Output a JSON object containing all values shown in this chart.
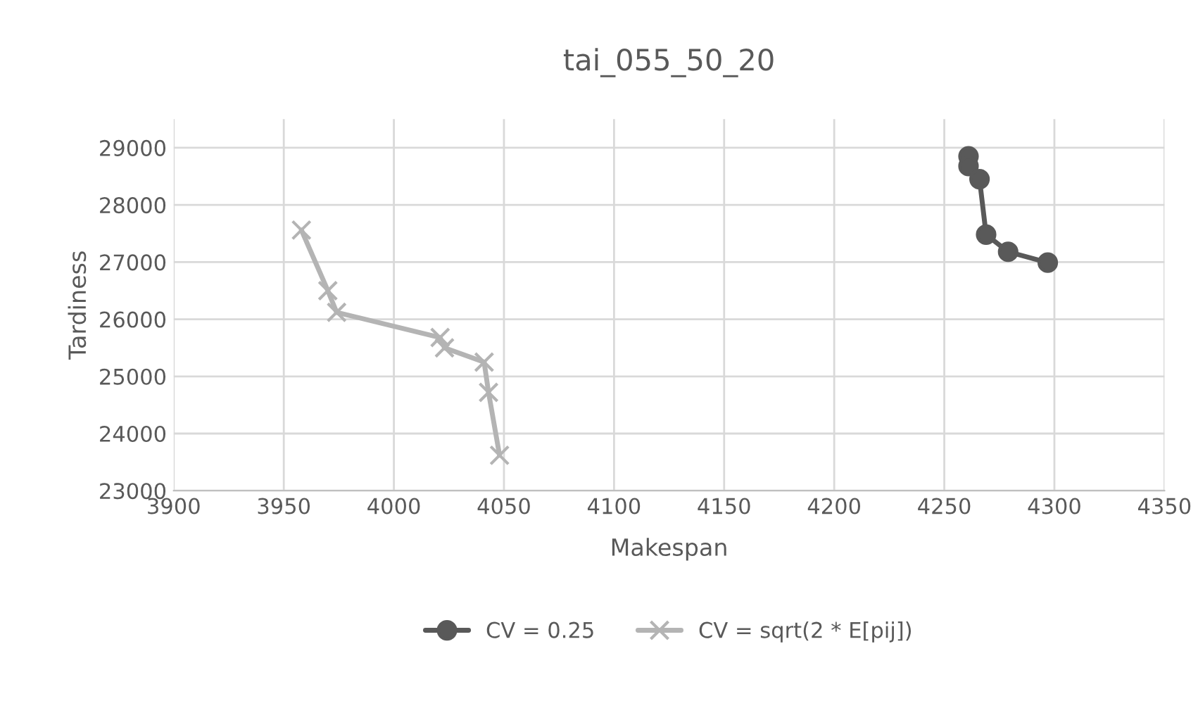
{
  "chart_data": {
    "type": "line",
    "title": "tai_055_50_20",
    "xlabel": "Makespan",
    "ylabel": "Tardiness",
    "series": [
      {
        "name": "CV = 0.25",
        "color": "#595959",
        "marker": "circle",
        "x": [
          4261,
          4261,
          4266,
          4269,
          4279,
          4297
        ],
        "values": [
          28850,
          28680,
          28450,
          27480,
          27180,
          26990
        ]
      },
      {
        "name": "CV = sqrt(2 * E[pij])",
        "color": "#b4b4b4",
        "marker": "cross",
        "x": [
          3958,
          3970,
          3974,
          4021,
          4023,
          4041,
          4043,
          4048
        ],
        "values": [
          27560,
          26500,
          26120,
          25680,
          25500,
          25250,
          24720,
          23620
        ]
      }
    ],
    "xlim": [
      3900,
      4350
    ],
    "xticks": [
      3900,
      3950,
      4000,
      4050,
      4100,
      4150,
      4200,
      4250,
      4300,
      4350
    ],
    "ylim": [
      23000,
      29500
    ],
    "yticks": [
      23000,
      24000,
      25000,
      26000,
      27000,
      28000,
      29000
    ],
    "grid": true,
    "legend": "bottom",
    "line_style": "solid"
  }
}
